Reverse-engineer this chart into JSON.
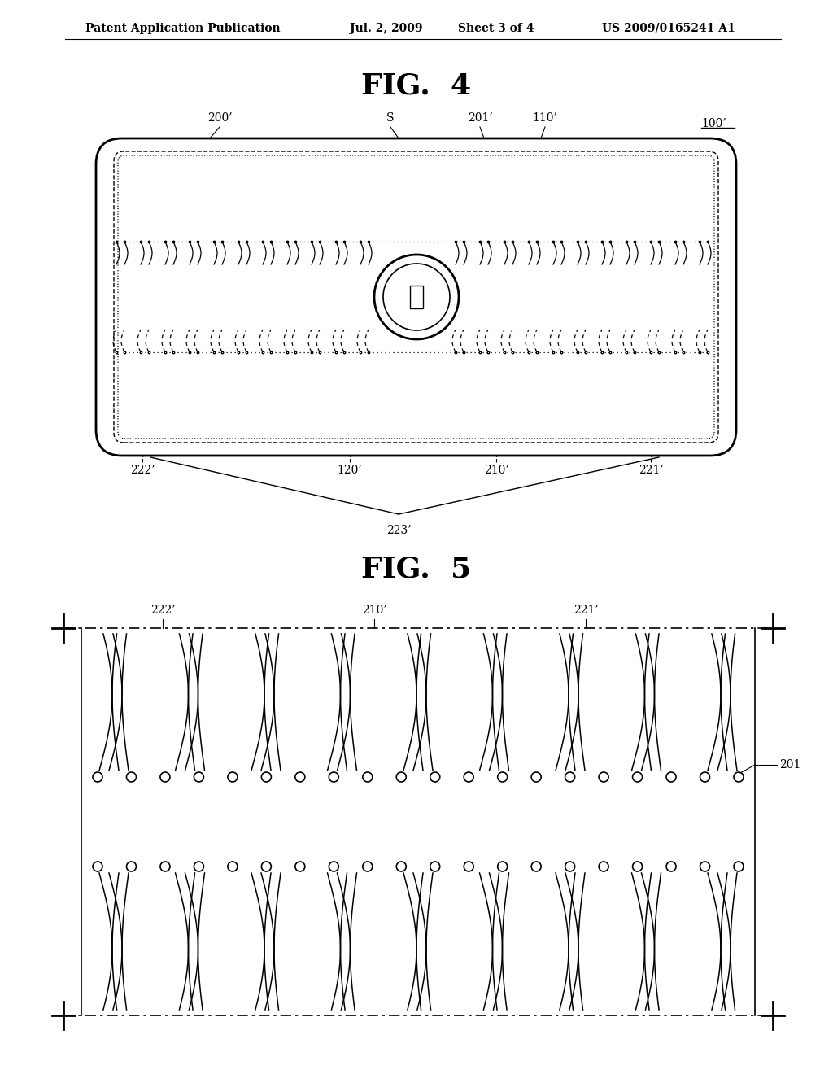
{
  "bg_color": "#ffffff",
  "header_text": "Patent Application Publication",
  "header_date": "Jul. 2, 2009",
  "header_sheet": "Sheet 3 of 4",
  "header_patent": "US 2009/0165241 A1",
  "fig4_title": "FIG.  4",
  "fig5_title": "FIG.  5"
}
